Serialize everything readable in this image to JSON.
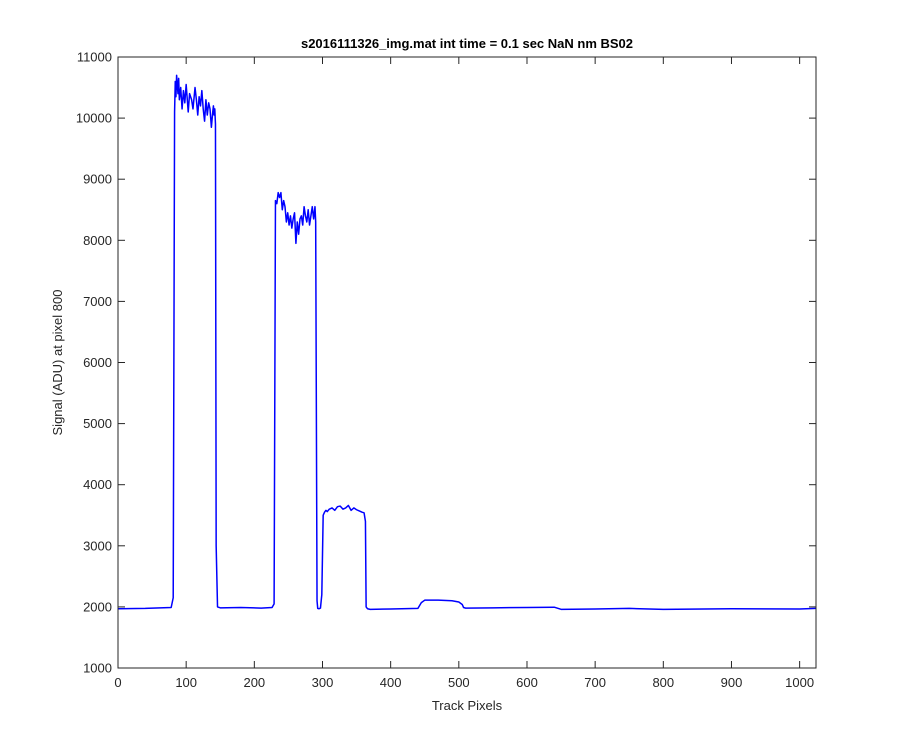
{
  "chart_data": {
    "type": "line",
    "title": "s2016111326_img.mat int time = 0.1 sec  NaN nm BS02",
    "xlabel": "Track Pixels",
    "ylabel": "Signal (ADU) at pixel 800",
    "xlim": [
      0,
      1024
    ],
    "ylim": [
      1000,
      11000
    ],
    "xticks": [
      0,
      100,
      200,
      300,
      400,
      500,
      600,
      700,
      800,
      900,
      1000
    ],
    "yticks": [
      1000,
      2000,
      3000,
      4000,
      5000,
      6000,
      7000,
      8000,
      9000,
      10000,
      11000
    ],
    "grid": false,
    "legend": "none",
    "line_color": "#0000ff",
    "series": [
      {
        "x": [
          0,
          40,
          78,
          81,
          83,
          84,
          85,
          86,
          87,
          88,
          89,
          90,
          92,
          94,
          96,
          98,
          100,
          103,
          105,
          108,
          110,
          113,
          115,
          117,
          119,
          121,
          123,
          125,
          127,
          129,
          131,
          133,
          135,
          137,
          139,
          140,
          141,
          142,
          143,
          144,
          146,
          150,
          180,
          210,
          226,
          229,
          231,
          233,
          235,
          237,
          239,
          241,
          243,
          245,
          247,
          249,
          251,
          253,
          255,
          257,
          259,
          261,
          263,
          265,
          267,
          269,
          271,
          273,
          275,
          277,
          279,
          281,
          283,
          285,
          287,
          289,
          290,
          292,
          293,
          295,
          297,
          299,
          301,
          303,
          305,
          307,
          310,
          314,
          318,
          322,
          326,
          330,
          334,
          338,
          342,
          346,
          350,
          354,
          358,
          361,
          363,
          364,
          366,
          370,
          400,
          440,
          445,
          450,
          470,
          490,
          500,
          505,
          507,
          510,
          550,
          600,
          640,
          650,
          700,
          750,
          800,
          900,
          1000,
          1024
        ],
        "y": [
          1970,
          1975,
          1990,
          2150,
          10100,
          10600,
          10350,
          10700,
          10550,
          10400,
          10650,
          10300,
          10500,
          10150,
          10450,
          10250,
          10550,
          10100,
          10400,
          10300,
          10150,
          10500,
          10300,
          10050,
          10350,
          10200,
          10450,
          10150,
          9950,
          10300,
          10050,
          10250,
          10150,
          9850,
          10100,
          10200,
          10050,
          10150,
          9900,
          3000,
          2000,
          1985,
          1990,
          1980,
          1990,
          2050,
          8650,
          8600,
          8780,
          8700,
          8780,
          8500,
          8650,
          8550,
          8300,
          8450,
          8250,
          8400,
          8200,
          8350,
          8450,
          7950,
          8300,
          8100,
          8350,
          8400,
          8250,
          8550,
          8400,
          8300,
          8500,
          8250,
          8400,
          8550,
          8350,
          8550,
          8300,
          2100,
          1975,
          1970,
          1980,
          2200,
          3500,
          3550,
          3580,
          3560,
          3600,
          3620,
          3580,
          3640,
          3650,
          3600,
          3620,
          3660,
          3580,
          3620,
          3590,
          3570,
          3550,
          3540,
          3400,
          2000,
          1970,
          1960,
          1965,
          1975,
          2070,
          2110,
          2110,
          2100,
          2080,
          2040,
          1990,
          1980,
          1985,
          1990,
          1995,
          1960,
          1965,
          1975,
          1960,
          1970,
          1965,
          1975
        ]
      }
    ]
  }
}
